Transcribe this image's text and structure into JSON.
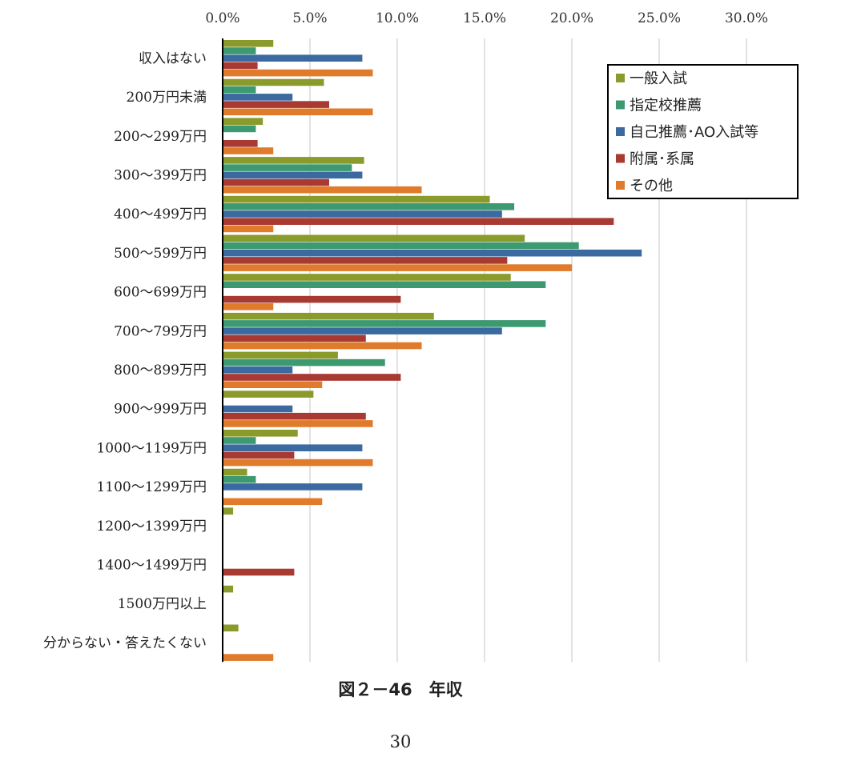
{
  "chart_data": {
    "type": "bar",
    "orientation": "horizontal",
    "title": "図２－46　年収",
    "xlabel": "",
    "ylabel": "",
    "xlim": [
      0,
      30
    ],
    "x_ticks": [
      "0.0%",
      "5.0%",
      "10.0%",
      "15.0%",
      "20.0%",
      "25.0%",
      "30.0%"
    ],
    "grid": true,
    "legend_position": "top-right",
    "categories": [
      "収入はない",
      "200万円未満",
      "200～299万円",
      "300～399万円",
      "400～499万円",
      "500～599万円",
      "600～699万円",
      "700～799万円",
      "800～899万円",
      "900～999万円",
      "1000～1199万円",
      "1100～1299万円",
      "1200～1399万円",
      "1400～1499万円",
      "1500万円以上",
      "分からない・答えたくない"
    ],
    "series": [
      {
        "name": "一般入試",
        "color": "#8a9a2b",
        "values": [
          2.9,
          5.8,
          2.3,
          8.1,
          15.3,
          17.3,
          16.5,
          12.1,
          6.6,
          5.2,
          4.3,
          1.4,
          0.6,
          0,
          0.6,
          0.9
        ]
      },
      {
        "name": "指定校推薦",
        "color": "#3d9970",
        "values": [
          1.9,
          1.9,
          1.9,
          7.4,
          16.7,
          20.4,
          18.5,
          18.5,
          9.3,
          0,
          1.9,
          1.9,
          0,
          0,
          0,
          0
        ]
      },
      {
        "name": "自己推薦･AO入試等",
        "color": "#3b6aa0",
        "values": [
          8.0,
          4.0,
          0,
          8.0,
          16.0,
          24.0,
          0,
          16.0,
          4.0,
          4.0,
          8.0,
          8.0,
          0,
          0,
          0,
          0
        ]
      },
      {
        "name": "附属･系属",
        "color": "#a83a32",
        "values": [
          2.0,
          6.1,
          2.0,
          6.1,
          22.4,
          16.3,
          10.2,
          8.2,
          10.2,
          8.2,
          4.1,
          0,
          0,
          4.1,
          0,
          0
        ]
      },
      {
        "name": "その他",
        "color": "#e07b2c",
        "values": [
          8.6,
          8.6,
          2.9,
          11.4,
          2.9,
          20.0,
          2.9,
          11.4,
          5.7,
          8.6,
          8.6,
          5.7,
          0,
          0,
          0,
          2.9
        ]
      }
    ]
  },
  "page_number": "30"
}
